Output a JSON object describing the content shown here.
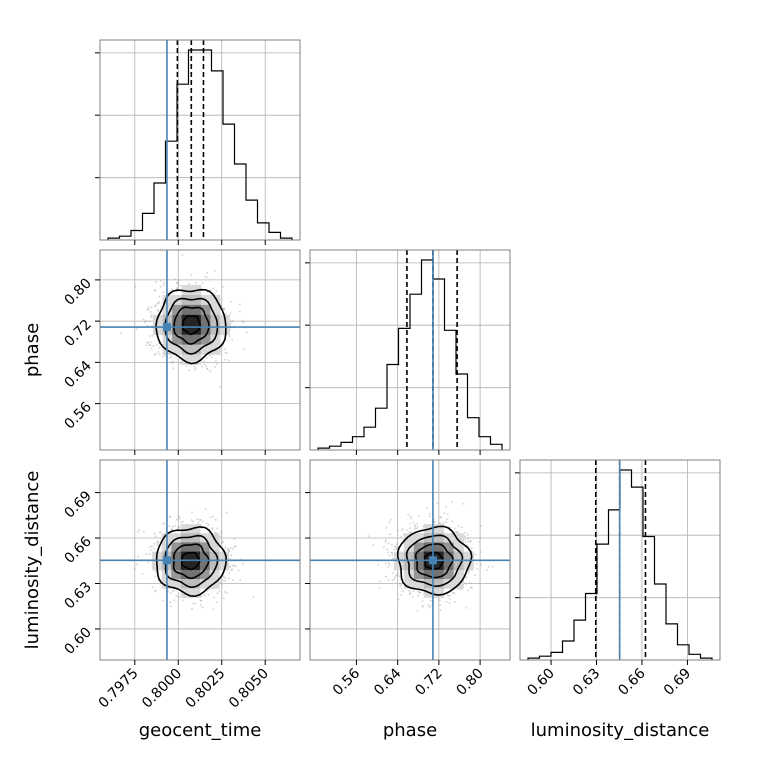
{
  "chart_data": {
    "type": "corner",
    "parameters": [
      {
        "name": "geocent_time",
        "label": "geocent_time",
        "range": [
          0.7955,
          0.807
        ],
        "ticks": [
          0.7975,
          0.8,
          0.8025,
          0.805
        ],
        "tick_labels": [
          "0.7975",
          "0.8000",
          "0.8025",
          "0.8050"
        ],
        "truth": 0.79935,
        "quantiles": [
          0.79995,
          0.80075,
          0.80145
        ]
      },
      {
        "name": "phase",
        "label": "phase",
        "range": [
          0.47,
          0.858
        ],
        "ticks": [
          0.56,
          0.64,
          0.72,
          0.8
        ],
        "tick_labels": [
          "0.56",
          "0.64",
          "0.72",
          "0.80"
        ],
        "truth": 0.7085,
        "quantiles": [
          0.658,
          0.7085,
          0.7554
        ]
      },
      {
        "name": "luminosity_distance",
        "label": "luminosity_distance",
        "range": [
          0.5795,
          0.7115
        ],
        "ticks": [
          0.6,
          0.63,
          0.66,
          0.69
        ],
        "tick_labels": [
          "0.60",
          "0.63",
          "0.66",
          "0.69"
        ],
        "truth": 0.6453,
        "quantiles": [
          0.6295,
          0.6453,
          0.6623
        ]
      }
    ],
    "histograms_1d": [
      {
        "parameter": "geocent_time",
        "counts": [
          1,
          2,
          5,
          14,
          30,
          52,
          82,
          100,
          100,
          89,
          61,
          40,
          21,
          9,
          4,
          1
        ]
      },
      {
        "parameter": "phase",
        "counts": [
          1,
          2,
          4,
          7,
          12,
          22,
          45,
          64,
          82,
          100,
          90,
          63,
          40,
          17,
          7,
          3
        ]
      },
      {
        "parameter": "luminosity_distance",
        "counts": [
          1,
          2,
          4,
          10,
          21,
          35,
          61,
          79,
          100,
          91,
          65,
          40,
          19,
          8,
          3,
          1
        ]
      }
    ],
    "scatter_2d": [
      {
        "x": "geocent_time",
        "y": "phase",
        "center": [
          0.80075,
          0.713
        ],
        "sigma": [
          0.001,
          0.035
        ]
      },
      {
        "x": "geocent_time",
        "y": "luminosity_distance",
        "center": [
          0.8007,
          0.645
        ],
        "sigma": [
          0.001,
          0.011
        ]
      },
      {
        "x": "phase",
        "y": "luminosity_distance",
        "center": [
          0.71,
          0.645
        ],
        "sigma": [
          0.035,
          0.011
        ]
      }
    ],
    "contour_levels_sigma": [
      0.5,
      1.0,
      1.5,
      2.0
    ],
    "truth_color": "#4682b4",
    "hist_color": "#000000",
    "grid": true
  }
}
